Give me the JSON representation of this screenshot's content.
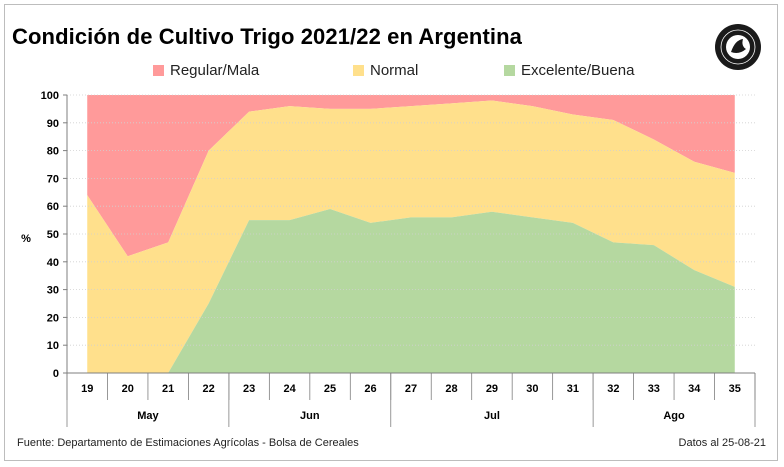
{
  "header": {
    "title": "Condición de Cultivo Trigo 2021/22 en Argentina"
  },
  "footer": {
    "source": "Fuente: Departamento de Estimaciones Agrícolas - Bolsa de Cereales",
    "date": "Datos al 25-08-21"
  },
  "colors": {
    "regular_mala": "#ff9a9a",
    "normal": "#ffe08c",
    "excelente_buena": "#b5d8a0"
  },
  "chart_data": {
    "type": "area",
    "title": "Condición de Cultivo Trigo 2021/22 en Argentina",
    "ylabel": "%",
    "ylim": [
      0,
      100
    ],
    "yticks": [
      0,
      10,
      20,
      30,
      40,
      50,
      60,
      70,
      80,
      90,
      100
    ],
    "stacked": true,
    "grid": true,
    "legend_position": "top",
    "x": [
      19,
      20,
      21,
      22,
      23,
      24,
      25,
      26,
      27,
      28,
      29,
      30,
      31,
      32,
      33,
      34,
      35
    ],
    "months": [
      {
        "label": "May",
        "weeks": [
          20,
          21
        ]
      },
      {
        "label": "Jun",
        "weeks": [
          24,
          25
        ]
      },
      {
        "label": "Jul",
        "weeks": [
          29
        ]
      },
      {
        "label": "Ago",
        "weeks": [
          33,
          34
        ]
      }
    ],
    "series": [
      {
        "name": "Regular/Mala",
        "values": [
          36,
          58,
          53,
          20,
          6,
          4,
          5,
          5,
          4,
          3,
          2,
          4,
          7,
          9,
          16,
          24,
          28
        ]
      },
      {
        "name": "Normal",
        "values": [
          64,
          42,
          47,
          55,
          39,
          41,
          36,
          41,
          40,
          41,
          40,
          40,
          39,
          44,
          38,
          39,
          41
        ]
      },
      {
        "name": "Excelente/Buena",
        "values": [
          0,
          0,
          0,
          25,
          55,
          55,
          59,
          54,
          56,
          56,
          58,
          56,
          54,
          47,
          46,
          37,
          31
        ]
      }
    ]
  }
}
